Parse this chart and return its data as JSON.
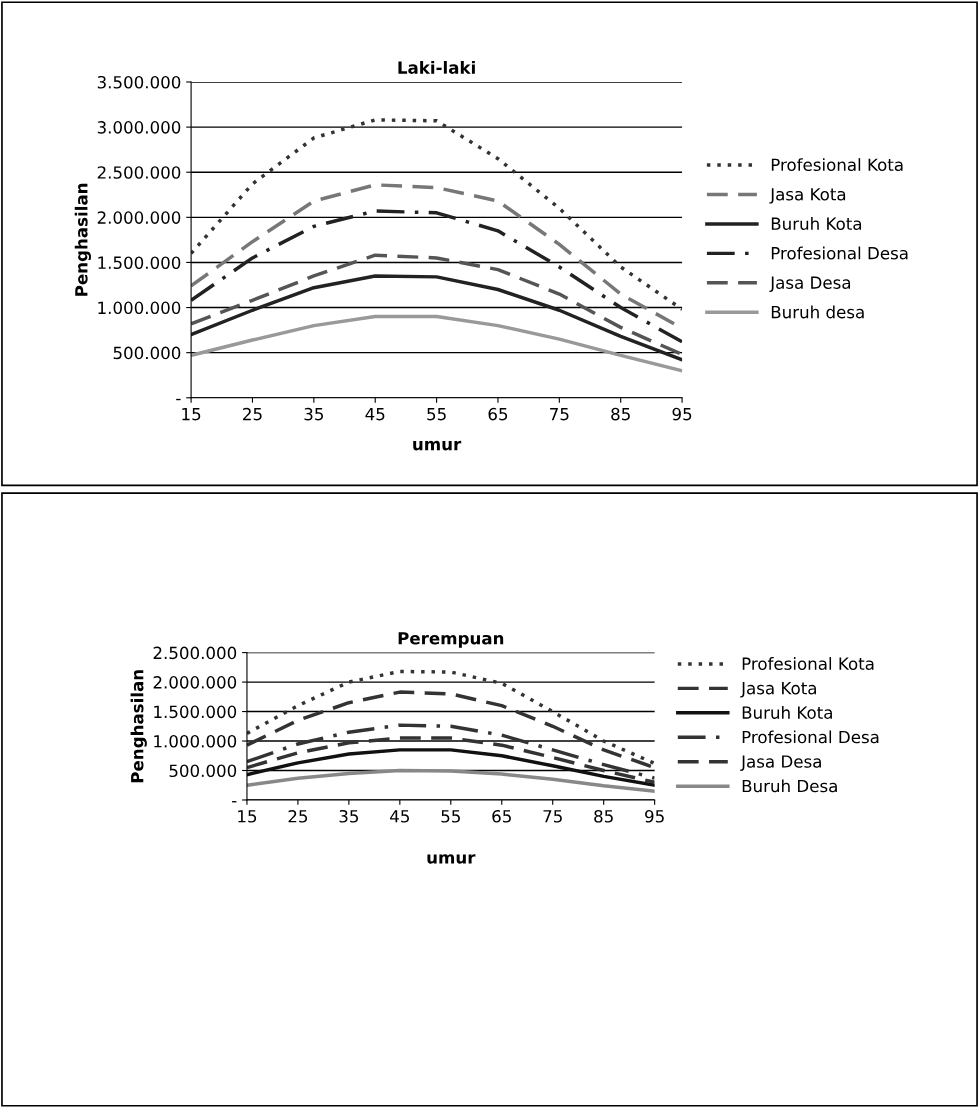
{
  "chart_data": [
    {
      "type": "line",
      "title": "Laki-laki",
      "xlabel": "umur",
      "ylabel": "Penghasilan",
      "x": [
        15,
        25,
        35,
        45,
        55,
        65,
        75,
        85,
        95
      ],
      "xlim": [
        15,
        95
      ],
      "xticks": [
        15,
        25,
        35,
        45,
        55,
        65,
        75,
        85,
        95
      ],
      "ylim": [
        0,
        3500000
      ],
      "yticks": [
        {
          "value": 0,
          "label": "-"
        },
        {
          "value": 500000,
          "label": "500.000"
        },
        {
          "value": 1000000,
          "label": "1.000.000"
        },
        {
          "value": 1500000,
          "label": "1.500.000"
        },
        {
          "value": 2000000,
          "label": "2.000.000"
        },
        {
          "value": 2500000,
          "label": "2.500.000"
        },
        {
          "value": 3000000,
          "label": "3.000.000"
        },
        {
          "value": 3500000,
          "label": "3.500.000"
        }
      ],
      "grid": "y",
      "legend": "right",
      "marker": "none",
      "series": [
        {
          "name": "Profesional Kota",
          "color": "#333333",
          "line_style": "dotted",
          "values": [
            1600000,
            2370000,
            2880000,
            3080000,
            3070000,
            2650000,
            2100000,
            1450000,
            980000
          ]
        },
        {
          "name": "Jasa Kota",
          "color": "#777777",
          "line_style": "dashed",
          "values": [
            1240000,
            1730000,
            2180000,
            2360000,
            2330000,
            2180000,
            1700000,
            1150000,
            770000
          ]
        },
        {
          "name": "Buruh Kota",
          "color": "#222222",
          "line_style": "solid",
          "values": [
            700000,
            970000,
            1220000,
            1350000,
            1340000,
            1200000,
            970000,
            680000,
            420000
          ]
        },
        {
          "name": "Profesional Desa",
          "color": "#222222",
          "line_style": "dashdot",
          "values": [
            1080000,
            1550000,
            1900000,
            2070000,
            2050000,
            1850000,
            1450000,
            1000000,
            620000
          ]
        },
        {
          "name": "Jasa Desa",
          "color": "#555555",
          "line_style": "dashed",
          "values": [
            820000,
            1080000,
            1350000,
            1580000,
            1550000,
            1420000,
            1150000,
            780000,
            480000
          ]
        },
        {
          "name": "Buruh desa",
          "color": "#999999",
          "line_style": "solid",
          "values": [
            470000,
            640000,
            800000,
            900000,
            900000,
            800000,
            650000,
            470000,
            300000
          ]
        }
      ]
    },
    {
      "type": "line",
      "title": "Perempuan",
      "xlabel": "umur",
      "ylabel": "Penghasilan",
      "x": [
        15,
        25,
        35,
        45,
        55,
        65,
        75,
        85,
        95
      ],
      "xlim": [
        15,
        95
      ],
      "xticks": [
        15,
        25,
        35,
        45,
        55,
        65,
        75,
        85,
        95
      ],
      "ylim": [
        0,
        2500000
      ],
      "yticks": [
        {
          "value": 0,
          "label": "-"
        },
        {
          "value": 500000,
          "label": "500.000"
        },
        {
          "value": 1000000,
          "label": "1.000.000"
        },
        {
          "value": 1500000,
          "label": "1.500.000"
        },
        {
          "value": 2000000,
          "label": "2.000.000"
        },
        {
          "value": 2500000,
          "label": "2.500.000"
        }
      ],
      "grid": "y",
      "legend": "right",
      "marker": "none",
      "series": [
        {
          "name": "Profesional Kota",
          "color": "#333333",
          "line_style": "dotted",
          "values": [
            1130000,
            1600000,
            2000000,
            2180000,
            2170000,
            1980000,
            1500000,
            1000000,
            620000
          ]
        },
        {
          "name": "Jasa Kota",
          "color": "#333333",
          "line_style": "dashed",
          "values": [
            930000,
            1350000,
            1650000,
            1830000,
            1800000,
            1600000,
            1250000,
            850000,
            550000
          ]
        },
        {
          "name": "Buruh Kota",
          "color": "#111111",
          "line_style": "solid",
          "values": [
            430000,
            630000,
            780000,
            850000,
            850000,
            750000,
            580000,
            400000,
            250000
          ]
        },
        {
          "name": "Profesional Desa",
          "color": "#333333",
          "line_style": "dashdot",
          "values": [
            650000,
            950000,
            1150000,
            1270000,
            1250000,
            1100000,
            850000,
            600000,
            370000
          ]
        },
        {
          "name": "Jasa Desa",
          "color": "#333333",
          "line_style": "dashed",
          "values": [
            550000,
            800000,
            970000,
            1050000,
            1050000,
            930000,
            720000,
            500000,
            300000
          ]
        },
        {
          "name": "Buruh Desa",
          "color": "#888888",
          "line_style": "solid",
          "values": [
            250000,
            370000,
            450000,
            500000,
            490000,
            440000,
            350000,
            240000,
            150000
          ]
        }
      ]
    }
  ]
}
